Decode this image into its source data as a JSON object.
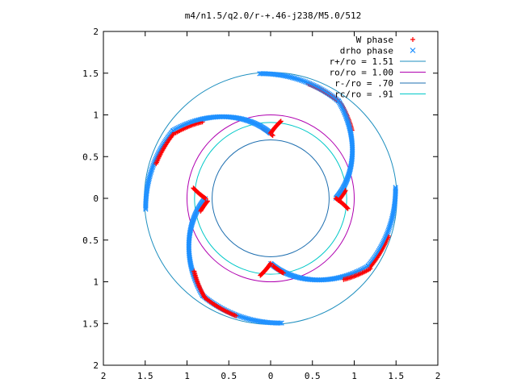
{
  "chart_data": {
    "type": "scatter",
    "title": "m4/n1.5/q2.0/r-+.46-j238/M5.0/512",
    "xlim": [
      -2,
      2
    ],
    "ylim": [
      -2,
      2
    ],
    "x_tick_values": [
      -2,
      -1.5,
      -1,
      -0.5,
      0,
      0.5,
      1,
      1.5,
      2
    ],
    "x_tick_labels": [
      "2",
      "1.5",
      "1",
      "0.5",
      "0",
      "0.5",
      "1",
      "1.5",
      "2"
    ],
    "y_tick_values": [
      2,
      1.5,
      1,
      0.5,
      0,
      -0.5,
      -1,
      -1.5,
      -2
    ],
    "y_tick_labels": [
      "2",
      "1.5",
      "1",
      "0.5",
      "0",
      "0.5",
      "1",
      "1.5",
      "2"
    ],
    "grid": false,
    "legend_position": "top-right",
    "arms": {
      "count": 4,
      "start_angles_deg": [
        55,
        145,
        235,
        325
      ]
    },
    "series": [
      {
        "name": "W phase",
        "marker": "+",
        "color": "#ff0000",
        "kind": "points"
      },
      {
        "name": "drho phase",
        "marker": "x",
        "color": "#1e90ff",
        "kind": "points"
      },
      {
        "name": "r+/ro = 1.51",
        "radius": 1.51,
        "color": "#1e8fbf",
        "kind": "circle"
      },
      {
        "name": "ro/ro = 1.00",
        "radius": 1.0,
        "color": "#b000b0",
        "kind": "circle"
      },
      {
        "name": "r-/ro = .70",
        "radius": 0.7,
        "color": "#1e6fb0",
        "kind": "circle"
      },
      {
        "name": "rc/ro = .91",
        "radius": 0.91,
        "color": "#00c8c8",
        "kind": "circle"
      }
    ]
  }
}
